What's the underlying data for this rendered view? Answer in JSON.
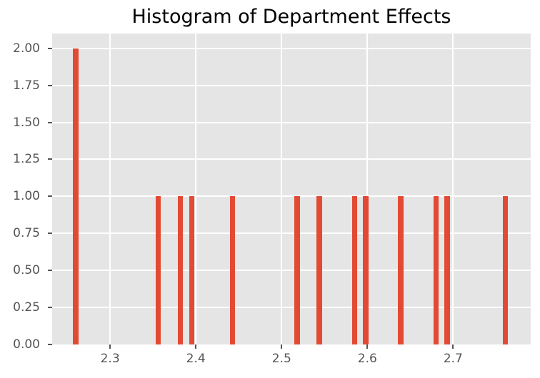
{
  "chart_data": {
    "type": "bar",
    "subtype": "histogram",
    "title": "Histogram of Department Effects",
    "xlabel": "",
    "ylabel": "",
    "xlim": [
      2.2324,
      2.7905
    ],
    "ylim": [
      0,
      2.1
    ],
    "bar_width": 0.0061,
    "bars": [
      {
        "x": 2.26,
        "count": 2
      },
      {
        "x": 2.356,
        "count": 1
      },
      {
        "x": 2.382,
        "count": 1
      },
      {
        "x": 2.395,
        "count": 1
      },
      {
        "x": 2.443,
        "count": 1
      },
      {
        "x": 2.518,
        "count": 1
      },
      {
        "x": 2.544,
        "count": 1
      },
      {
        "x": 2.585,
        "count": 1
      },
      {
        "x": 2.598,
        "count": 1
      },
      {
        "x": 2.639,
        "count": 1
      },
      {
        "x": 2.68,
        "count": 1
      },
      {
        "x": 2.693,
        "count": 1
      },
      {
        "x": 2.761,
        "count": 1
      }
    ],
    "xticks": [
      {
        "value": 2.3,
        "label": "2.3"
      },
      {
        "value": 2.4,
        "label": "2.4"
      },
      {
        "value": 2.5,
        "label": "2.5"
      },
      {
        "value": 2.6,
        "label": "2.6"
      },
      {
        "value": 2.7,
        "label": "2.7"
      }
    ],
    "yticks": [
      {
        "value": 0.0,
        "label": "0.00"
      },
      {
        "value": 0.25,
        "label": "0.25"
      },
      {
        "value": 0.5,
        "label": "0.50"
      },
      {
        "value": 0.75,
        "label": "0.75"
      },
      {
        "value": 1.0,
        "label": "1.00"
      },
      {
        "value": 1.25,
        "label": "1.25"
      },
      {
        "value": 1.5,
        "label": "1.50"
      },
      {
        "value": 1.75,
        "label": "1.75"
      },
      {
        "value": 2.0,
        "label": "2.00"
      }
    ],
    "grid": {
      "which": "major",
      "visible": true
    },
    "legend": null,
    "colors": {
      "bar": "#E24A33",
      "plot_background": "#E5E5E5",
      "figure_background": "#FFFFFF",
      "grid": "#FFFFFF",
      "tick_text": "#555555",
      "tick_mark": "#555555",
      "title_text": "#000000"
    }
  }
}
